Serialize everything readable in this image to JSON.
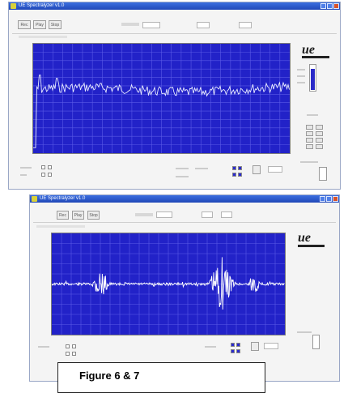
{
  "caption": "Figure 6 & 7",
  "window1": {
    "title": "UE Spectralyzer v1.0",
    "buttons": [
      "Rec",
      "Play",
      "Stop"
    ],
    "logo": "ue",
    "plot_color": "#2222c8",
    "trace_color": "#e9ecff"
  },
  "window2": {
    "title": "UE Spectralyzer v1.0",
    "buttons": [
      "Rec",
      "Play",
      "Stop"
    ],
    "logo": "ue",
    "plot_color": "#2222c8",
    "trace_color": "#ffffff"
  },
  "icons": {
    "app": "app-icon",
    "minimize": "minimize-icon",
    "maximize": "maximize-icon",
    "close": "close-icon"
  }
}
